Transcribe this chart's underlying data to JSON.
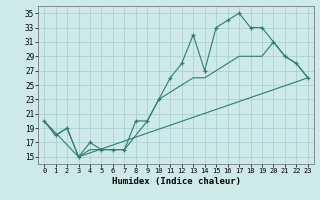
{
  "title": "",
  "xlabel": "Humidex (Indice chaleur)",
  "bg_color": "#cee9e9",
  "grid_color": "#aed0d0",
  "line_color": "#2e7d6e",
  "xlim": [
    -0.5,
    23.5
  ],
  "ylim": [
    14,
    36
  ],
  "yticks": [
    15,
    17,
    19,
    21,
    23,
    25,
    27,
    29,
    31,
    33,
    35
  ],
  "xticks": [
    0,
    1,
    2,
    3,
    4,
    5,
    6,
    7,
    8,
    9,
    10,
    11,
    12,
    13,
    14,
    15,
    16,
    17,
    18,
    19,
    20,
    21,
    22,
    23
  ],
  "line1_x": [
    0,
    1,
    2,
    3,
    4,
    5,
    6,
    7,
    8,
    9,
    10,
    11,
    12,
    13,
    14,
    15,
    16,
    17,
    18,
    19,
    20,
    21,
    22,
    23
  ],
  "line1_y": [
    20,
    18,
    19,
    15,
    17,
    16,
    16,
    16,
    20,
    20,
    23,
    26,
    28,
    32,
    27,
    33,
    34,
    35,
    33,
    33,
    31,
    29,
    28,
    26
  ],
  "line2_x": [
    0,
    1,
    2,
    3,
    4,
    5,
    6,
    7,
    8,
    9,
    10,
    11,
    12,
    13,
    14,
    15,
    16,
    17,
    18,
    19,
    20,
    21,
    22,
    23
  ],
  "line2_y": [
    20,
    18,
    19,
    15,
    16,
    16,
    16,
    16,
    18,
    20,
    23,
    24,
    25,
    26,
    26,
    27,
    28,
    29,
    29,
    29,
    31,
    29,
    28,
    26
  ],
  "line3_x": [
    0,
    3,
    23
  ],
  "line3_y": [
    20,
    15,
    26
  ]
}
